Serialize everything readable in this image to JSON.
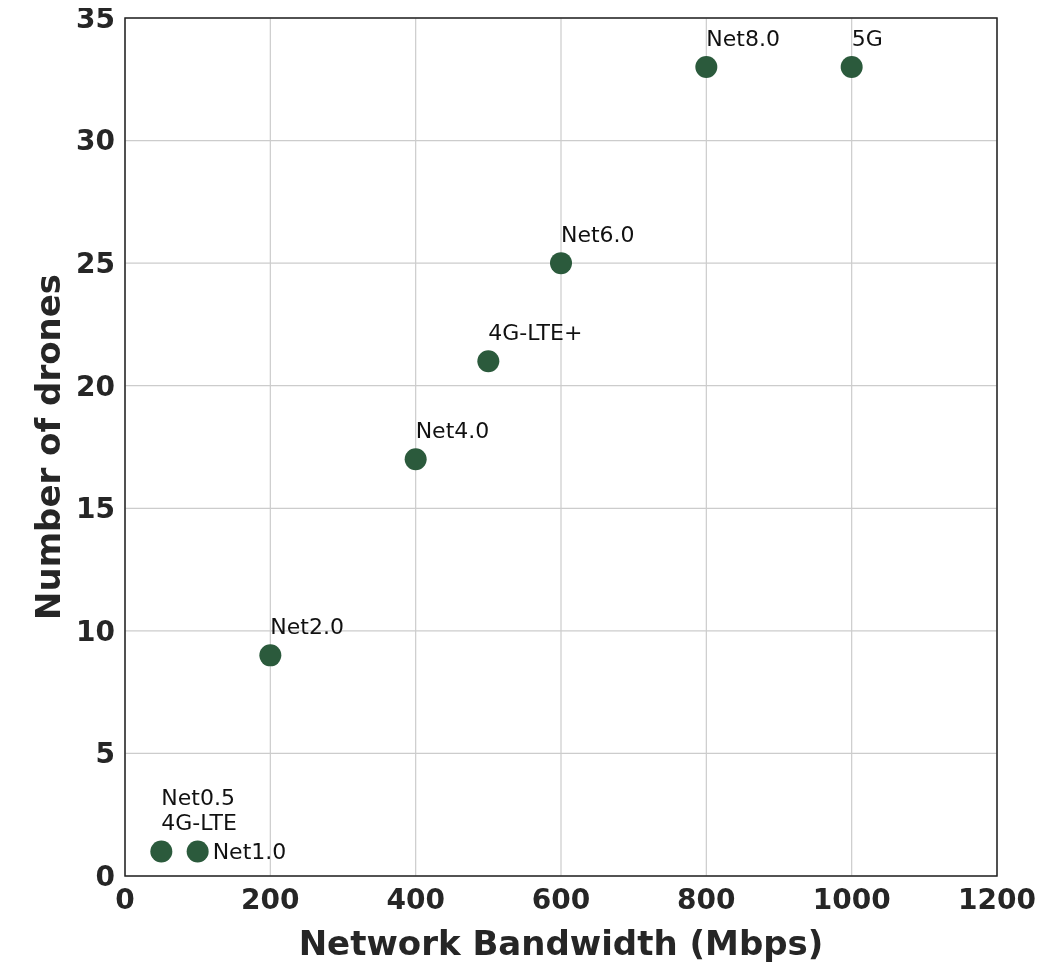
{
  "chart_data": {
    "type": "scatter",
    "xlabel": "Network Bandwidth (Mbps)",
    "ylabel": "Number of drones",
    "x": [
      50,
      100,
      200,
      400,
      500,
      600,
      800,
      1000
    ],
    "series": [
      {
        "color": "#2b5a3c",
        "values": [
          1,
          1,
          9,
          17,
          21,
          25,
          33,
          33
        ]
      }
    ],
    "xlim": [
      0,
      1200
    ],
    "xticks": [
      0,
      200,
      400,
      600,
      800,
      1000,
      1200
    ],
    "ylim": [
      0,
      35
    ],
    "yticks": [
      0,
      5,
      10,
      15,
      20,
      25,
      30,
      35
    ],
    "grid": true,
    "marker": "circle",
    "annotations": [
      {
        "text": "4G-LTE",
        "x": 50,
        "y": 1
      },
      {
        "text": "Net0.5",
        "x": 50,
        "y": 1
      },
      {
        "text": "Net1.0",
        "x": 100,
        "y": 1
      },
      {
        "text": "Net2.0",
        "x": 200,
        "y": 9
      },
      {
        "text": "Net4.0",
        "x": 400,
        "y": 17
      },
      {
        "text": "4G-LTE+",
        "x": 500,
        "y": 21
      },
      {
        "text": "Net6.0",
        "x": 600,
        "y": 25
      },
      {
        "text": "Net8.0",
        "x": 800,
        "y": 33
      },
      {
        "text": "5G",
        "x": 1000,
        "y": 33
      }
    ]
  }
}
